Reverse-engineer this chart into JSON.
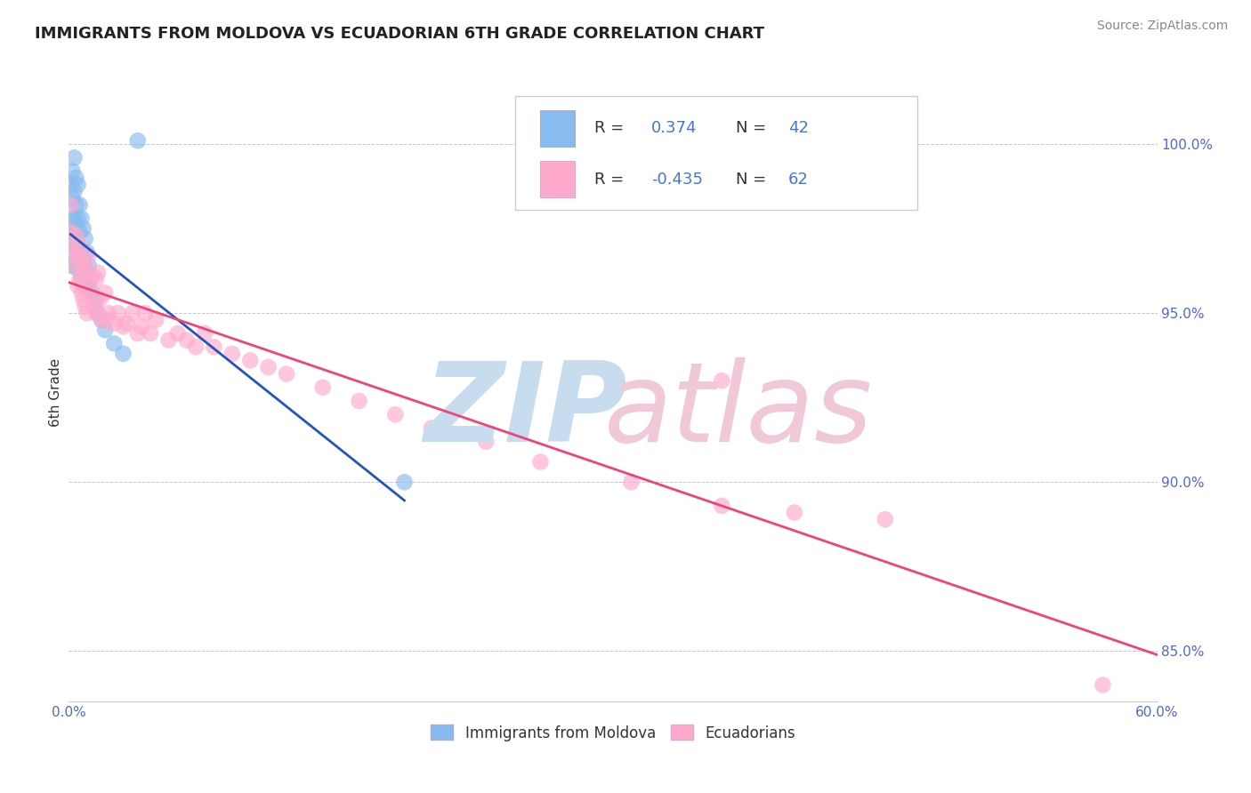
{
  "title": "IMMIGRANTS FROM MOLDOVA VS ECUADORIAN 6TH GRADE CORRELATION CHART",
  "source_text": "Source: ZipAtlas.com",
  "ylabel": "6th Grade",
  "xlim": [
    0.0,
    0.6
  ],
  "ylim": [
    0.835,
    1.018
  ],
  "xticks": [
    0.0,
    0.1,
    0.2,
    0.3,
    0.4,
    0.5,
    0.6
  ],
  "xticklabels": [
    "0.0%",
    "",
    "",
    "",
    "",
    "",
    "60.0%"
  ],
  "yticks": [
    0.85,
    0.9,
    0.95,
    1.0
  ],
  "yticklabels": [
    "85.0%",
    "90.0%",
    "95.0%",
    "100.0%"
  ],
  "blue_color": "#88BBEE",
  "pink_color": "#FFAACC",
  "blue_line_color": "#2255BB",
  "pink_line_color": "#EE4477",
  "legend_r_blue": "0.374",
  "legend_n_blue": "42",
  "legend_r_pink": "-0.435",
  "legend_n_pink": "62",
  "blue_label": "Immigrants from Moldova",
  "pink_label": "Ecuadorians",
  "blue_x": [
    0.001,
    0.002,
    0.002,
    0.002,
    0.003,
    0.003,
    0.003,
    0.004,
    0.004,
    0.004,
    0.004,
    0.005,
    0.005,
    0.005,
    0.005,
    0.006,
    0.006,
    0.006,
    0.007,
    0.007,
    0.007,
    0.008,
    0.008,
    0.008,
    0.009,
    0.009,
    0.01,
    0.01,
    0.011,
    0.012,
    0.013,
    0.015,
    0.016,
    0.018,
    0.02,
    0.025,
    0.03,
    0.038,
    0.185,
    0.001,
    0.003,
    0.002
  ],
  "blue_y": [
    0.988,
    0.992,
    0.984,
    0.978,
    0.996,
    0.986,
    0.974,
    0.99,
    0.982,
    0.974,
    0.966,
    0.988,
    0.978,
    0.97,
    0.963,
    0.982,
    0.974,
    0.965,
    0.978,
    0.968,
    0.96,
    0.975,
    0.966,
    0.958,
    0.972,
    0.963,
    0.968,
    0.958,
    0.964,
    0.96,
    0.956,
    0.954,
    0.95,
    0.948,
    0.945,
    0.941,
    0.938,
    1.001,
    0.9,
    0.964,
    0.978,
    0.97
  ],
  "pink_x": [
    0.001,
    0.001,
    0.002,
    0.003,
    0.004,
    0.004,
    0.005,
    0.005,
    0.006,
    0.006,
    0.007,
    0.007,
    0.008,
    0.008,
    0.009,
    0.009,
    0.01,
    0.01,
    0.011,
    0.012,
    0.013,
    0.014,
    0.015,
    0.015,
    0.016,
    0.017,
    0.018,
    0.02,
    0.021,
    0.022,
    0.025,
    0.027,
    0.03,
    0.032,
    0.035,
    0.038,
    0.04,
    0.042,
    0.045,
    0.048,
    0.055,
    0.06,
    0.065,
    0.07,
    0.075,
    0.08,
    0.09,
    0.1,
    0.11,
    0.12,
    0.14,
    0.16,
    0.18,
    0.2,
    0.23,
    0.26,
    0.31,
    0.36,
    0.4,
    0.45,
    0.36,
    0.57
  ],
  "pink_y": [
    0.982,
    0.974,
    0.97,
    0.968,
    0.973,
    0.964,
    0.966,
    0.958,
    0.97,
    0.96,
    0.966,
    0.956,
    0.964,
    0.954,
    0.962,
    0.952,
    0.96,
    0.95,
    0.967,
    0.956,
    0.961,
    0.952,
    0.96,
    0.95,
    0.962,
    0.954,
    0.948,
    0.956,
    0.948,
    0.95,
    0.947,
    0.95,
    0.946,
    0.947,
    0.95,
    0.944,
    0.946,
    0.95,
    0.944,
    0.948,
    0.942,
    0.944,
    0.942,
    0.94,
    0.944,
    0.94,
    0.938,
    0.936,
    0.934,
    0.932,
    0.928,
    0.924,
    0.92,
    0.916,
    0.912,
    0.906,
    0.9,
    0.893,
    0.891,
    0.889,
    0.93,
    0.84
  ]
}
